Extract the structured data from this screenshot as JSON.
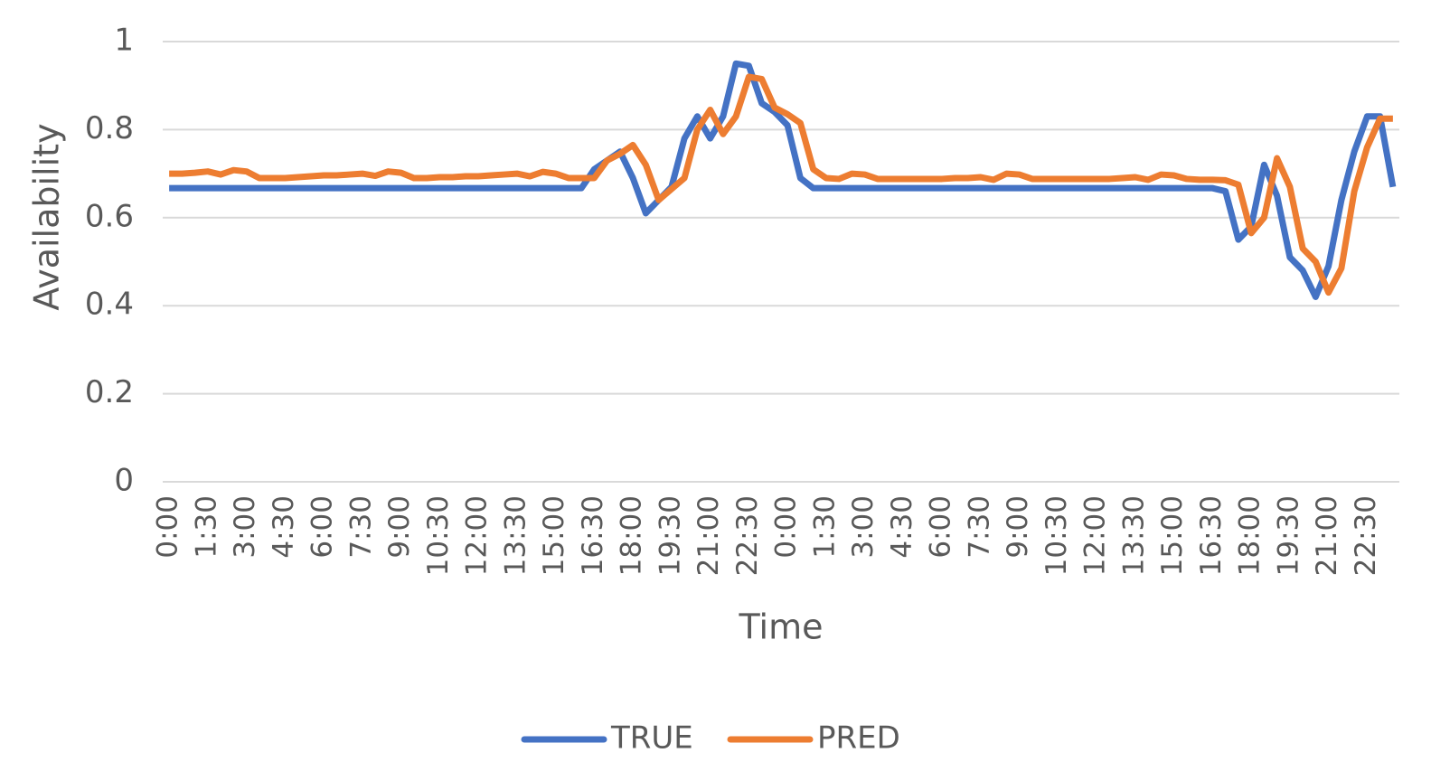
{
  "chart_data": {
    "type": "line",
    "y_label": "Availability",
    "x_label": "Time",
    "categories": [
      "0:00",
      null,
      null,
      "1:30",
      null,
      null,
      "3:00",
      null,
      null,
      "4:30",
      null,
      null,
      "6:00",
      null,
      null,
      "7:30",
      null,
      null,
      "9:00",
      null,
      null,
      "10:30",
      null,
      null,
      "12:00",
      null,
      null,
      "13:30",
      null,
      null,
      "15:00",
      null,
      null,
      "16:30",
      null,
      null,
      "18:00",
      null,
      null,
      "19:30",
      null,
      null,
      "21:00",
      null,
      null,
      "22:30",
      null,
      null,
      "0:00",
      null,
      null,
      "1:30",
      null,
      null,
      "3:00",
      null,
      null,
      "4:30",
      null,
      null,
      "6:00",
      null,
      null,
      "7:30",
      null,
      null,
      "9:00",
      null,
      null,
      "10:30",
      null,
      null,
      "12:00",
      null,
      null,
      "13:30",
      null,
      null,
      "15:00",
      null,
      null,
      "16:30",
      null,
      null,
      "18:00",
      null,
      null,
      "19:30",
      null,
      null,
      "21:00",
      null,
      null,
      "22:30",
      null,
      null
    ],
    "series": [
      {
        "name": "TRUE",
        "color": "#4472c4",
        "values": [
          0.667,
          0.667,
          0.667,
          0.667,
          0.667,
          0.667,
          0.667,
          0.667,
          0.667,
          0.667,
          0.667,
          0.667,
          0.667,
          0.667,
          0.667,
          0.667,
          0.667,
          0.667,
          0.667,
          0.667,
          0.667,
          0.667,
          0.667,
          0.667,
          0.667,
          0.667,
          0.667,
          0.667,
          0.667,
          0.667,
          0.667,
          0.667,
          0.667,
          0.71,
          0.73,
          0.75,
          0.69,
          0.61,
          0.64,
          0.67,
          0.78,
          0.83,
          0.78,
          0.83,
          0.95,
          0.945,
          0.86,
          0.84,
          0.81,
          0.69,
          0.667,
          0.667,
          0.667,
          0.667,
          0.667,
          0.667,
          0.667,
          0.667,
          0.667,
          0.667,
          0.667,
          0.667,
          0.667,
          0.667,
          0.667,
          0.667,
          0.667,
          0.667,
          0.667,
          0.667,
          0.667,
          0.667,
          0.667,
          0.667,
          0.667,
          0.667,
          0.667,
          0.667,
          0.667,
          0.667,
          0.667,
          0.667,
          0.66,
          0.55,
          0.58,
          0.72,
          0.65,
          0.51,
          0.48,
          0.42,
          0.49,
          0.64,
          0.75,
          0.83,
          0.83,
          0.67
        ]
      },
      {
        "name": "PRED",
        "color": "#ed7d31",
        "values": [
          0.7,
          0.7,
          0.702,
          0.705,
          0.698,
          0.708,
          0.705,
          0.69,
          0.69,
          0.69,
          0.692,
          0.694,
          0.696,
          0.696,
          0.698,
          0.7,
          0.695,
          0.705,
          0.702,
          0.69,
          0.69,
          0.692,
          0.692,
          0.694,
          0.694,
          0.696,
          0.698,
          0.7,
          0.694,
          0.704,
          0.7,
          0.69,
          0.69,
          0.69,
          0.73,
          0.745,
          0.765,
          0.72,
          0.64,
          0.665,
          0.69,
          0.8,
          0.845,
          0.79,
          0.83,
          0.92,
          0.915,
          0.85,
          0.835,
          0.815,
          0.71,
          0.69,
          0.688,
          0.7,
          0.698,
          0.688,
          0.688,
          0.688,
          0.688,
          0.688,
          0.688,
          0.69,
          0.69,
          0.692,
          0.686,
          0.7,
          0.698,
          0.688,
          0.688,
          0.688,
          0.688,
          0.688,
          0.688,
          0.688,
          0.69,
          0.692,
          0.686,
          0.698,
          0.696,
          0.688,
          0.686,
          0.686,
          0.685,
          0.675,
          0.565,
          0.6,
          0.735,
          0.67,
          0.53,
          0.5,
          0.43,
          0.485,
          0.66,
          0.76,
          0.825,
          0.825
        ]
      }
    ],
    "ylim": [
      0,
      1
    ],
    "yticks": [
      0,
      0.2,
      0.4,
      0.6,
      0.8,
      1
    ],
    "grid": true,
    "legend": "bottom"
  }
}
